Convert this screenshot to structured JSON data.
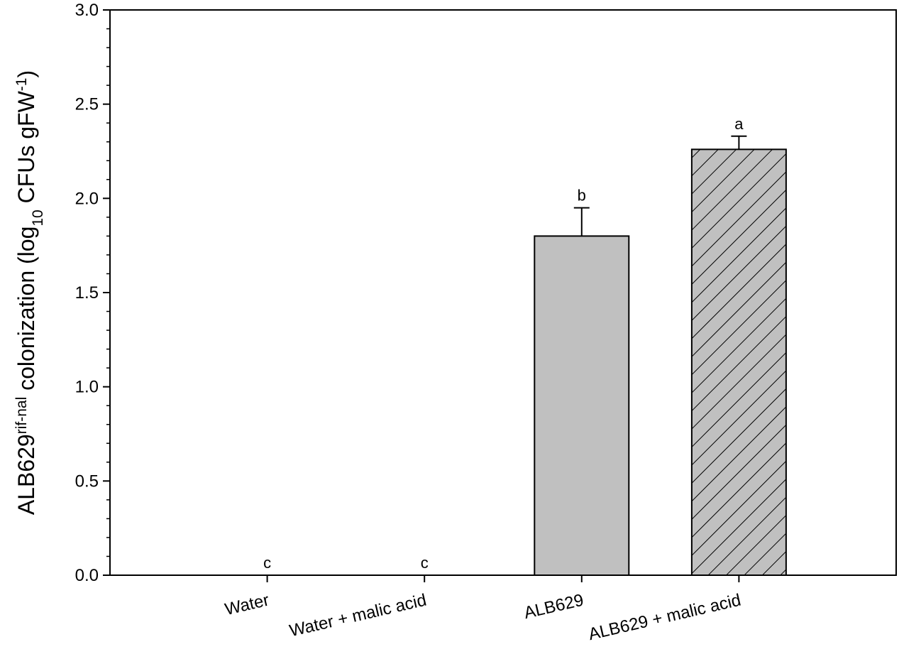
{
  "chart_data": {
    "type": "bar",
    "ylabel": [
      {
        "text": "ALB629",
        "style": "normal"
      },
      {
        "text": "rif-nal",
        "style": "sup"
      },
      {
        "text": " colonization (log",
        "style": "normal"
      },
      {
        "text": "10",
        "style": "sub"
      },
      {
        "text": " CFUs gFW",
        "style": "normal"
      },
      {
        "text": "-1",
        "style": "sup"
      },
      {
        "text": ")",
        "style": "normal"
      }
    ],
    "categories": [
      "Water",
      "Water + malic acid",
      "ALB629",
      "ALB629 + malic acid"
    ],
    "values": [
      0,
      0,
      1.8,
      2.26
    ],
    "errors": [
      null,
      null,
      0.15,
      0.07
    ],
    "annotations": [
      "c",
      "c",
      "b",
      "a"
    ],
    "hatch": [
      false,
      false,
      false,
      true
    ],
    "color": "#c0c0c0",
    "ylim": [
      0,
      3.0
    ],
    "yticks": [
      {
        "value": 0,
        "label": "0.0"
      },
      0.5,
      {
        "value": 1,
        "label": "1.0"
      },
      1.5,
      {
        "value": 2,
        "label": "2.0"
      },
      2.5,
      {
        "value": 3,
        "label": "3.0"
      }
    ],
    "yminor_ticks": [
      0.1,
      0.2,
      0.3,
      0.4,
      0.6,
      0.7,
      0.8,
      0.9,
      1.1,
      1.2,
      1.3,
      1.4,
      1.6,
      1.7,
      1.8,
      1.9,
      2.1,
      2.2,
      2.3,
      2.4,
      2.6,
      2.7,
      2.8,
      2.9
    ],
    "grid": false
  }
}
